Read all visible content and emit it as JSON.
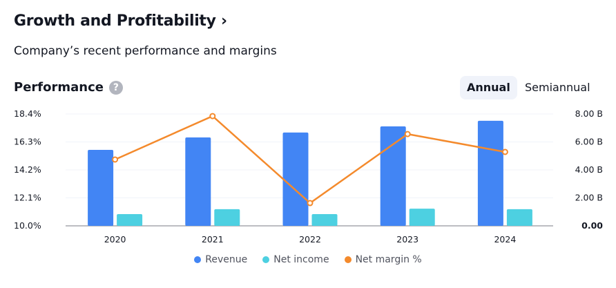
{
  "header": {
    "title": "Growth and Profitability ›",
    "subtitle": "Company’s recent performance and margins"
  },
  "section": {
    "title": "Performance",
    "help_icon": "question-circle-icon",
    "help_glyph": "?"
  },
  "period_toggle": {
    "options": [
      "Annual",
      "Semiannual"
    ],
    "selected": "Annual"
  },
  "colors": {
    "revenue": "#4285f4",
    "net_income": "#4dd0e1",
    "net_margin": "#f48a2c",
    "grid": "#f0f3fa",
    "axis": "#787b86"
  },
  "chart_data": {
    "type": "bar",
    "categories": [
      "2020",
      "2021",
      "2022",
      "2023",
      "2024"
    ],
    "series": [
      {
        "name": "Revenue",
        "type": "bar",
        "axis": "right",
        "values": [
          5.43,
          6.32,
          6.67,
          7.11,
          7.51
        ]
      },
      {
        "name": "Net income",
        "type": "bar",
        "axis": "right",
        "values": [
          0.84,
          1.19,
          0.84,
          1.23,
          1.19
        ]
      },
      {
        "name": "Net margin %",
        "type": "line",
        "axis": "left",
        "values": [
          14.98,
          18.24,
          11.71,
          16.89,
          15.55
        ]
      }
    ],
    "left_axis": {
      "range": [
        10.0,
        18.4
      ],
      "ticks": [
        "10.0%",
        "12.1%",
        "14.2%",
        "16.3%",
        "18.4%"
      ]
    },
    "right_axis": {
      "range": [
        0,
        8
      ],
      "ticks": [
        "0.00",
        "2.00 B",
        "4.00 B",
        "6.00 B",
        "8.00 B"
      ]
    },
    "legend": [
      "Revenue",
      "Net income",
      "Net margin %"
    ],
    "legend_position": "bottom",
    "grid": true
  }
}
